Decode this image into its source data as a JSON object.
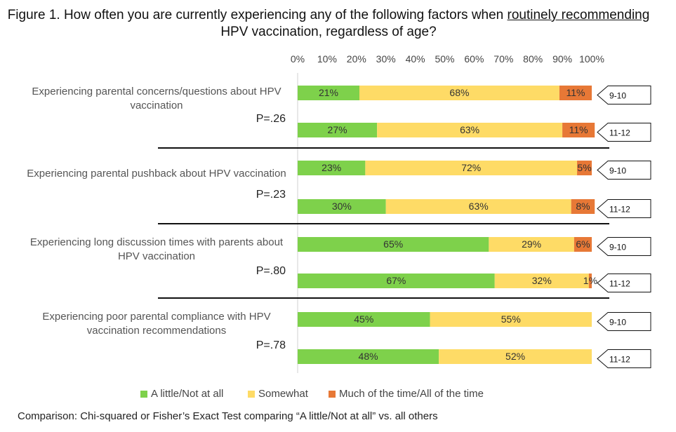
{
  "title": {
    "before": "Figure 1. How often you are currently experiencing any of the following factors when ",
    "underlined": "routinely recommending",
    "after": " HPV vaccination, regardless of age?"
  },
  "legend": {
    "low": "A little/Not at all",
    "mid": "Somewhat",
    "high": "Much of the time/All of the time"
  },
  "colors": {
    "low": "#7ed14b",
    "mid": "#fedb66",
    "high": "#e77836"
  },
  "footnote": "Comparison: Chi-squared or Fisher’s Exact Test comparing “A little/Not at all” vs. all others",
  "chart_data": {
    "type": "bar",
    "orientation": "horizontal",
    "stacked": true,
    "xlim": [
      0,
      100
    ],
    "x_ticks": [
      "0%",
      "10%",
      "20%",
      "30%",
      "40%",
      "50%",
      "60%",
      "70%",
      "80%",
      "90%",
      "100%"
    ],
    "series_names": [
      "A little/Not at all",
      "Somewhat",
      "Much of the time/All of the time"
    ],
    "groups": [
      {
        "label": [
          "Experiencing parental concerns/questions about HPV",
          "vaccination"
        ],
        "p_value": "P=.26",
        "bars": [
          {
            "age": "9-10",
            "values": [
              21,
              68,
              11
            ],
            "labels": [
              "21%",
              "68%",
              "11%"
            ]
          },
          {
            "age": "11-12",
            "values": [
              27,
              63,
              11
            ],
            "labels": [
              "27%",
              "63%",
              "11%"
            ]
          }
        ]
      },
      {
        "label": [
          "Experiencing parental pushback about HPV vaccination"
        ],
        "p_value": "P=.23",
        "bars": [
          {
            "age": "9-10",
            "values": [
              23,
              72,
              5
            ],
            "labels": [
              "23%",
              "72%",
              "5%"
            ]
          },
          {
            "age": "11-12",
            "values": [
              30,
              63,
              8
            ],
            "labels": [
              "30%",
              "63%",
              "8%"
            ]
          }
        ]
      },
      {
        "label": [
          "Experiencing long discussion times with parents about",
          "HPV vaccination"
        ],
        "p_value": "P=.80",
        "bars": [
          {
            "age": "9-10",
            "values": [
              65,
              29,
              6
            ],
            "labels": [
              "65%",
              "29%",
              "6%"
            ]
          },
          {
            "age": "11-12",
            "values": [
              67,
              32,
              1
            ],
            "labels": [
              "67%",
              "32%",
              "1%"
            ]
          }
        ]
      },
      {
        "label": [
          "Experiencing poor parental compliance with HPV",
          "vaccination recommendations"
        ],
        "p_value": "P=.78",
        "bars": [
          {
            "age": "9-10",
            "values": [
              45,
              55,
              0
            ],
            "labels": [
              "45%",
              "55%",
              ""
            ]
          },
          {
            "age": "11-12",
            "values": [
              48,
              52,
              0
            ],
            "labels": [
              "48%",
              "52%",
              ""
            ]
          }
        ]
      }
    ]
  }
}
